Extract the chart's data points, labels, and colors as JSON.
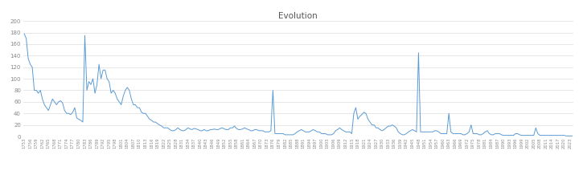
{
  "title": "Evolution",
  "title_fontsize": 7.5,
  "line_color": "#5B9BD5",
  "background_color": "#ffffff",
  "ylim": [
    0,
    200
  ],
  "yticks": [
    0,
    20,
    40,
    60,
    80,
    100,
    120,
    140,
    160,
    180,
    200
  ],
  "year_start": 1753,
  "values": [
    178,
    170,
    135,
    125,
    120,
    80,
    80,
    75,
    80,
    65,
    55,
    50,
    45,
    55,
    65,
    60,
    55,
    60,
    62,
    58,
    45,
    40,
    40,
    38,
    42,
    50,
    32,
    30,
    28,
    25,
    175,
    80,
    95,
    90,
    100,
    75,
    90,
    125,
    100,
    115,
    115,
    100,
    95,
    75,
    80,
    75,
    65,
    60,
    55,
    70,
    80,
    85,
    80,
    65,
    55,
    55,
    50,
    50,
    42,
    40,
    40,
    35,
    30,
    28,
    25,
    25,
    22,
    20,
    18,
    15,
    15,
    15,
    12,
    10,
    10,
    12,
    15,
    12,
    10,
    10,
    12,
    15,
    13,
    12,
    14,
    13,
    12,
    10,
    10,
    12,
    10,
    10,
    12,
    12,
    13,
    12,
    12,
    14,
    15,
    13,
    12,
    12,
    15,
    15,
    18,
    14,
    12,
    12,
    13,
    15,
    13,
    12,
    10,
    10,
    12,
    12,
    10,
    10,
    10,
    8,
    8,
    8,
    10,
    80,
    5,
    5,
    5,
    5,
    5,
    3,
    3,
    3,
    3,
    3,
    5,
    8,
    10,
    12,
    10,
    8,
    8,
    8,
    10,
    12,
    10,
    8,
    8,
    5,
    5,
    5,
    3,
    3,
    3,
    5,
    10,
    12,
    15,
    12,
    10,
    8,
    8,
    8,
    5,
    40,
    50,
    30,
    35,
    38,
    42,
    40,
    30,
    25,
    20,
    20,
    15,
    15,
    12,
    10,
    12,
    15,
    18,
    18,
    20,
    18,
    15,
    8,
    5,
    3,
    3,
    5,
    8,
    10,
    12,
    10,
    8,
    145,
    8,
    8,
    8,
    8,
    8,
    8,
    8,
    10,
    10,
    8,
    5,
    5,
    5,
    5,
    40,
    8,
    5,
    5,
    5,
    5,
    5,
    3,
    3,
    5,
    8,
    20,
    5,
    5,
    5,
    3,
    3,
    5,
    8,
    10,
    5,
    3,
    3,
    5,
    5,
    5,
    3,
    2,
    2,
    2,
    2,
    2,
    2,
    5,
    5,
    3,
    2,
    2,
    2,
    2,
    2,
    2,
    2,
    15,
    5,
    2,
    2,
    2,
    2,
    2,
    2,
    2,
    2,
    2,
    2,
    2,
    2,
    2,
    1,
    1,
    1,
    1
  ]
}
